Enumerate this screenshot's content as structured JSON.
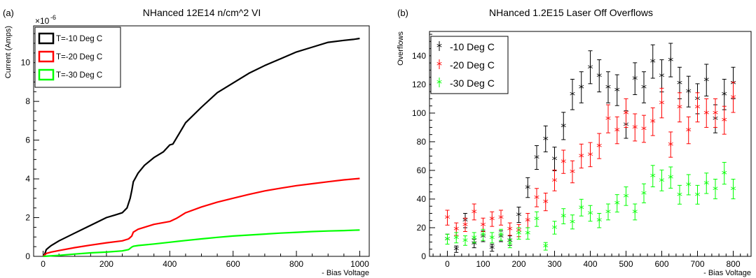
{
  "chart_data": [
    {
      "type": "line",
      "panel_label": "(a)",
      "title": "NHanced 12E14 n/cm^2 VI",
      "xlabel": "- Bias Voltage",
      "ylabel": "Current (Amps)",
      "y_exponent": "×10",
      "y_exponent_power": "-6",
      "xlim": [
        -30,
        1030
      ],
      "ylim": [
        0,
        11.9
      ],
      "xticks": [
        "0",
        "200",
        "400",
        "600",
        "800",
        "1000"
      ],
      "xtick_values": [
        0,
        200,
        400,
        600,
        800,
        1000
      ],
      "yticks": [
        "0",
        "2",
        "4",
        "6",
        "8",
        "10"
      ],
      "ytick_values": [
        0,
        2,
        4,
        6,
        8,
        10
      ],
      "grid": false,
      "legend_position": "top-left",
      "series": [
        {
          "name": "T=-10 Deg C",
          "color": "#000000",
          "x": [
            0,
            5,
            10,
            15,
            25,
            50,
            100,
            150,
            200,
            230,
            250,
            265,
            275,
            280,
            285,
            290,
            300,
            320,
            350,
            380,
            400,
            410,
            430,
            450,
            500,
            550,
            600,
            650,
            700,
            750,
            800,
            850,
            900,
            950,
            980,
            1000
          ],
          "y": [
            0.0,
            0.12,
            0.35,
            0.42,
            0.55,
            0.8,
            1.2,
            1.6,
            2.0,
            2.15,
            2.25,
            2.5,
            3.0,
            3.4,
            3.85,
            4.0,
            4.3,
            4.7,
            5.1,
            5.4,
            5.75,
            5.8,
            6.35,
            6.9,
            7.7,
            8.45,
            8.95,
            9.45,
            9.85,
            10.2,
            10.55,
            10.8,
            11.05,
            11.15,
            11.2,
            11.25
          ]
        },
        {
          "name": "T=-20 Deg C",
          "color": "#ff0000",
          "x": [
            0,
            10,
            25,
            50,
            100,
            150,
            200,
            250,
            270,
            280,
            285,
            290,
            300,
            350,
            400,
            420,
            430,
            450,
            500,
            550,
            600,
            650,
            700,
            750,
            800,
            850,
            900,
            950,
            1000
          ],
          "y": [
            0.0,
            0.15,
            0.22,
            0.3,
            0.45,
            0.58,
            0.7,
            0.8,
            0.9,
            1.05,
            1.25,
            1.3,
            1.4,
            1.65,
            1.8,
            1.95,
            2.05,
            2.25,
            2.55,
            2.8,
            3.0,
            3.2,
            3.38,
            3.52,
            3.65,
            3.75,
            3.85,
            3.95,
            4.02
          ]
        },
        {
          "name": "T=-30 Deg C",
          "color": "#00ff00",
          "x": [
            0,
            50,
            100,
            150,
            200,
            250,
            270,
            280,
            285,
            300,
            350,
            400,
            450,
            500,
            550,
            600,
            650,
            700,
            750,
            800,
            850,
            900,
            950,
            1000
          ],
          "y": [
            0.0,
            0.05,
            0.12,
            0.18,
            0.22,
            0.28,
            0.35,
            0.48,
            0.52,
            0.56,
            0.64,
            0.73,
            0.82,
            0.9,
            0.98,
            1.05,
            1.1,
            1.15,
            1.2,
            1.24,
            1.28,
            1.31,
            1.33,
            1.36
          ]
        }
      ]
    },
    {
      "type": "scatter",
      "panel_label": "(b)",
      "title": "NHanced 1.2E15 Laser Off Overflows",
      "xlabel": "- Bias Voltage",
      "ylabel": "Overflows",
      "xlim": [
        -50,
        850
      ],
      "ylim": [
        0,
        157
      ],
      "xticks": [
        "0",
        "100",
        "200",
        "300",
        "400",
        "500",
        "600",
        "700",
        "800"
      ],
      "xtick_values": [
        0,
        100,
        200,
        300,
        400,
        500,
        600,
        700,
        800
      ],
      "yticks": [
        "0",
        "20",
        "40",
        "60",
        "80",
        "100",
        "120",
        "140"
      ],
      "ytick_values": [
        0,
        20,
        40,
        60,
        80,
        100,
        120,
        140
      ],
      "grid": false,
      "legend_position": "top-left",
      "marker": "asterisk with vertical error bars",
      "series": [
        {
          "name": "-10 Deg C",
          "color": "#000000",
          "x": [
            0,
            25,
            50,
            75,
            100,
            125,
            150,
            175,
            200,
            225,
            250,
            275,
            300,
            325,
            350,
            375,
            400,
            425,
            450,
            475,
            500,
            525,
            550,
            575,
            600,
            625,
            650,
            675,
            700,
            725,
            750,
            775,
            800
          ],
          "y": [
            12,
            5,
            25,
            9,
            14,
            6,
            14,
            11,
            29,
            48,
            69,
            82,
            68,
            91,
            113,
            118,
            132,
            126,
            118,
            116,
            92,
            124,
            118,
            136,
            126,
            137,
            121,
            115,
            110,
            123,
            96,
            113,
            121
          ]
        },
        {
          "name": "-20 Deg C",
          "color": "#ff0000",
          "x": [
            0,
            25,
            50,
            75,
            100,
            125,
            150,
            175,
            200,
            225,
            250,
            275,
            300,
            325,
            350,
            375,
            400,
            425,
            450,
            475,
            500,
            525,
            550,
            575,
            600,
            625,
            650,
            675,
            700,
            725,
            750,
            775,
            800
          ],
          "y": [
            27,
            19,
            22,
            31,
            22,
            26,
            27,
            19,
            18,
            25,
            41,
            38,
            53,
            66,
            59,
            70,
            71,
            77,
            96,
            88,
            100,
            90,
            89,
            94,
            107,
            78,
            104,
            88,
            104,
            100,
            100,
            95,
            111
          ]
        },
        {
          "name": "-30 Deg C",
          "color": "#00ff00",
          "x": [
            0,
            25,
            50,
            75,
            100,
            125,
            150,
            175,
            200,
            225,
            250,
            275,
            300,
            325,
            350,
            375,
            400,
            425,
            450,
            475,
            500,
            525,
            550,
            575,
            600,
            625,
            650,
            675,
            700,
            725,
            750,
            775,
            800
          ],
          "y": [
            12,
            13,
            11,
            13,
            15,
            13,
            15,
            9,
            16,
            16,
            26,
            7,
            20,
            28,
            24,
            34,
            30,
            25,
            31,
            37,
            42,
            31,
            44,
            56,
            53,
            55,
            43,
            50,
            43,
            51,
            47,
            58,
            47
          ]
        }
      ]
    }
  ]
}
